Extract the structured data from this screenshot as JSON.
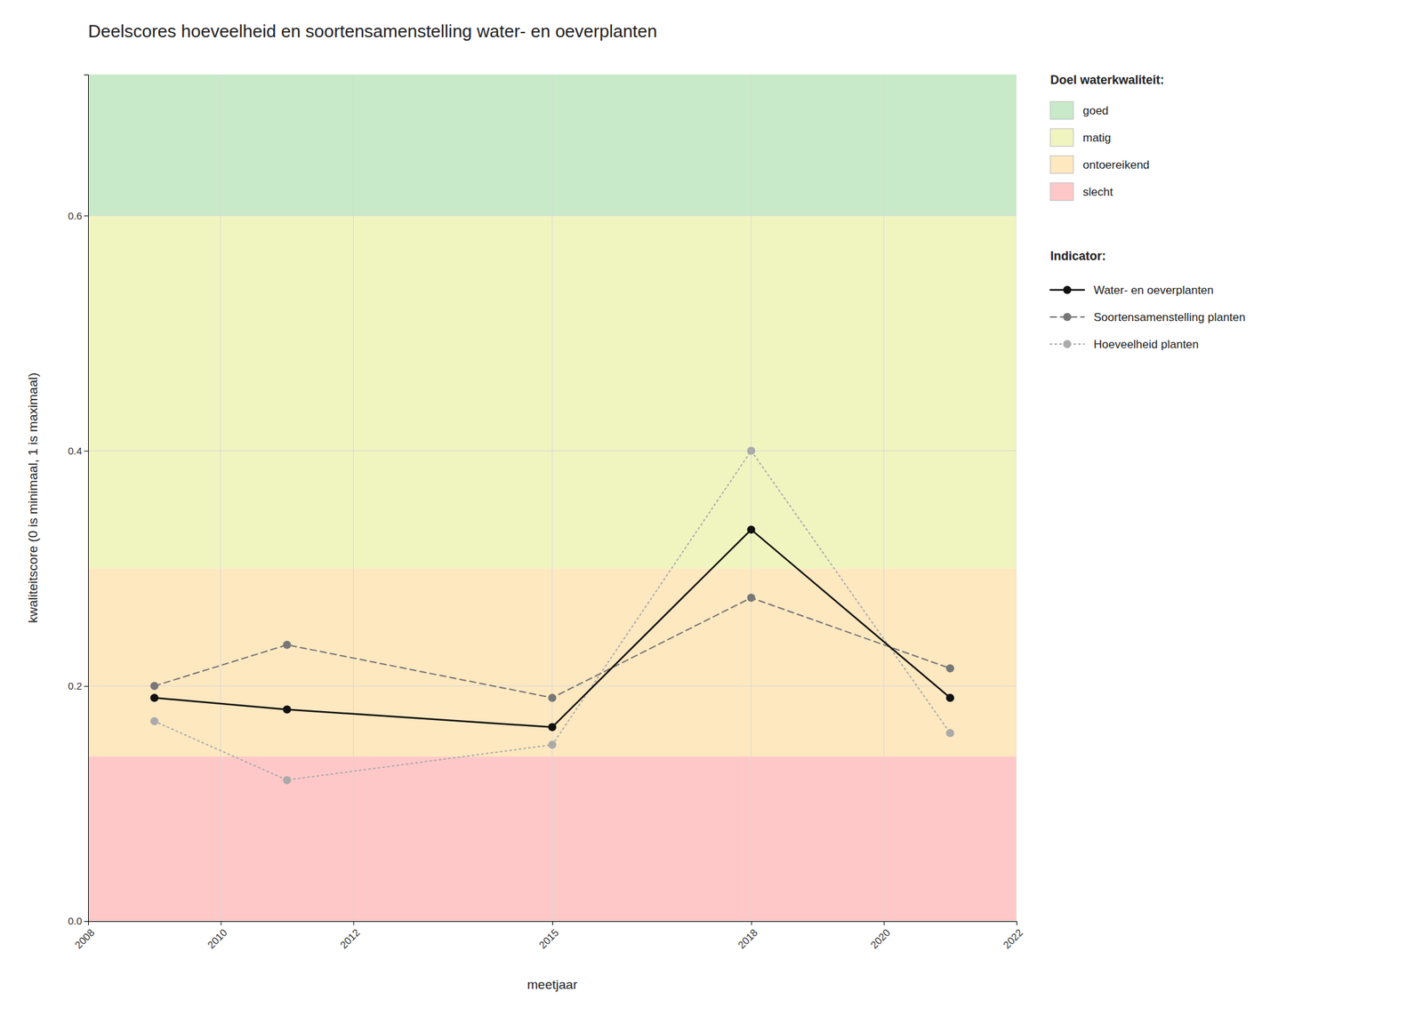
{
  "chart_data": {
    "type": "line",
    "title": "Deelscores hoeveelheid en soortensamenstelling water- en oeverplanten",
    "x_label": "meetjaar",
    "y_label": "kwaliteitscore (0 is minimaal, 1 is maximaal)",
    "x": [
      2009,
      2011,
      2015,
      2018,
      2021
    ],
    "xlim": [
      2008,
      2022
    ],
    "xticks": [
      2008,
      2010,
      2012,
      2015,
      2018,
      2020,
      2022
    ],
    "ylim": [
      0.0,
      0.72
    ],
    "yticks": [
      {
        "value": 0.0,
        "label": "0.0"
      },
      0.2,
      0.4,
      0.6
    ],
    "grid": true,
    "band_legend_title": "Doel waterkwaliteit:",
    "bands": [
      {
        "name": "goed",
        "color": "#c8eac8",
        "ymin": 0.6,
        "ymax": 0.72
      },
      {
        "name": "matig",
        "color": "#f0f5c0",
        "ymin": 0.3,
        "ymax": 0.6
      },
      {
        "name": "ontoereikend",
        "color": "#fde8c0",
        "ymin": 0.14,
        "ymax": 0.3
      },
      {
        "name": "slecht",
        "color": "#ffc8c8",
        "ymin": 0.0,
        "ymax": 0.14
      }
    ],
    "series_legend_title": "Indicator:",
    "series": [
      {
        "name": "Water- en oeverplanten",
        "color": "#111111",
        "line_style": "solid",
        "marker": "circle",
        "values": [
          0.19,
          0.18,
          0.165,
          0.333,
          0.19
        ]
      },
      {
        "name": "Soortensamenstelling planten",
        "color": "#777777",
        "line_style": "dashed",
        "marker": "circle",
        "values": [
          0.2,
          0.235,
          0.19,
          0.275,
          0.215
        ]
      },
      {
        "name": "Hoeveelheid planten",
        "color": "#aaaaaa",
        "line_style": "dotted",
        "marker": "circle",
        "values": [
          0.17,
          0.12,
          0.15,
          0.4,
          0.16
        ]
      }
    ]
  }
}
